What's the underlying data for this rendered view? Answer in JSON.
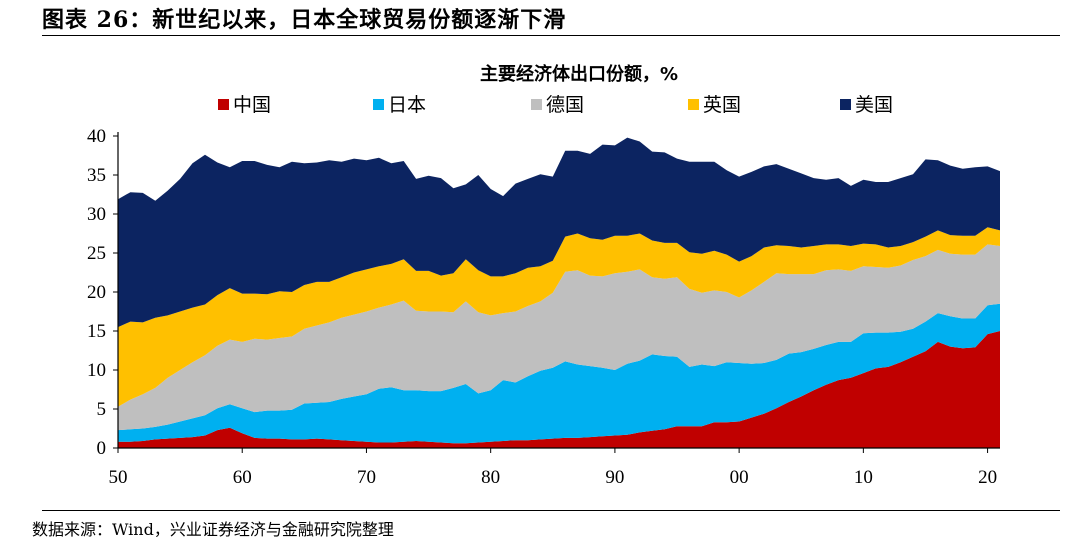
{
  "figure": {
    "title": "图表 26：新世纪以来，日本全球贸易份额逐渐下滑",
    "source": "数据来源：Wind，兴业证券经济与金融研究院整理"
  },
  "chart_data": {
    "type": "area",
    "stacked": true,
    "title": "主要经济体出口份额，%",
    "xlabel": "",
    "ylabel": "",
    "ylim": [
      0,
      40
    ],
    "yticks": [
      0,
      5,
      10,
      15,
      20,
      25,
      30,
      35,
      40
    ],
    "x": [
      1950,
      1951,
      1952,
      1953,
      1954,
      1955,
      1956,
      1957,
      1958,
      1959,
      1960,
      1961,
      1962,
      1963,
      1964,
      1965,
      1966,
      1967,
      1968,
      1969,
      1970,
      1971,
      1972,
      1973,
      1974,
      1975,
      1976,
      1977,
      1978,
      1979,
      1980,
      1981,
      1982,
      1983,
      1984,
      1985,
      1986,
      1987,
      1988,
      1989,
      1990,
      1991,
      1992,
      1993,
      1994,
      1995,
      1996,
      1997,
      1998,
      1999,
      2000,
      2001,
      2002,
      2003,
      2004,
      2005,
      2006,
      2007,
      2008,
      2009,
      2010,
      2011,
      2012,
      2013,
      2014,
      2015,
      2016,
      2017,
      2018,
      2019,
      2020,
      2021
    ],
    "xtick_values": [
      1950,
      1960,
      1970,
      1980,
      1990,
      2000,
      2010,
      2020
    ],
    "xtick_labels": [
      "50",
      "60",
      "70",
      "80",
      "90",
      "00",
      "10",
      "20"
    ],
    "legend_position": "top",
    "grid": false,
    "series": [
      {
        "name": "中国",
        "color": "#c00000",
        "values": [
          0.8,
          0.8,
          0.9,
          1.1,
          1.2,
          1.3,
          1.4,
          1.6,
          2.3,
          2.6,
          1.9,
          1.3,
          1.2,
          1.2,
          1.1,
          1.1,
          1.2,
          1.1,
          1.0,
          0.9,
          0.8,
          0.7,
          0.7,
          0.8,
          0.9,
          0.8,
          0.7,
          0.6,
          0.6,
          0.7,
          0.8,
          0.9,
          1.0,
          1.0,
          1.1,
          1.2,
          1.3,
          1.3,
          1.4,
          1.5,
          1.6,
          1.7,
          2.0,
          2.2,
          2.4,
          2.8,
          2.8,
          2.8,
          3.3,
          3.3,
          3.4,
          3.9,
          4.4,
          5.1,
          5.9,
          6.6,
          7.4,
          8.1,
          8.7,
          9.0,
          9.6,
          10.2,
          10.4,
          11.0,
          11.7,
          12.4,
          13.6,
          13.0,
          12.8,
          12.9,
          14.6,
          15.0
        ]
      },
      {
        "name": "日本",
        "color": "#00b0f0",
        "values": [
          1.5,
          1.6,
          1.6,
          1.6,
          1.8,
          2.1,
          2.4,
          2.6,
          2.8,
          3.0,
          3.2,
          3.3,
          3.6,
          3.6,
          3.8,
          4.6,
          4.6,
          4.8,
          5.3,
          5.7,
          6.1,
          6.9,
          7.1,
          6.6,
          6.5,
          6.5,
          6.6,
          7.1,
          7.6,
          6.3,
          6.6,
          7.8,
          7.4,
          8.2,
          8.8,
          9.1,
          9.8,
          9.4,
          9.1,
          8.8,
          8.4,
          9.1,
          9.2,
          9.8,
          9.4,
          8.9,
          7.6,
          7.9,
          7.2,
          7.7,
          7.5,
          6.9,
          6.5,
          6.2,
          6.2,
          5.7,
          5.3,
          5.1,
          4.9,
          4.6,
          5.1,
          4.6,
          4.4,
          3.9,
          3.6,
          3.8,
          3.7,
          3.9,
          3.8,
          3.7,
          3.7,
          3.5
        ]
      },
      {
        "name": "德国",
        "color": "#bfbfbf",
        "values": [
          3.0,
          3.8,
          4.4,
          5.0,
          6.0,
          6.6,
          7.2,
          7.7,
          8.0,
          8.3,
          8.5,
          9.4,
          9.1,
          9.3,
          9.4,
          9.6,
          9.9,
          10.2,
          10.4,
          10.5,
          10.6,
          10.4,
          10.6,
          11.5,
          10.2,
          10.2,
          10.2,
          9.7,
          10.6,
          10.4,
          9.6,
          8.6,
          9.1,
          9.0,
          8.9,
          9.6,
          11.5,
          12.1,
          11.6,
          11.7,
          12.4,
          11.8,
          11.7,
          9.9,
          9.9,
          10.2,
          10.0,
          9.2,
          9.7,
          9.0,
          8.4,
          9.4,
          10.4,
          11.1,
          10.2,
          10.0,
          9.6,
          9.6,
          9.3,
          9.1,
          8.6,
          8.4,
          8.3,
          8.5,
          8.8,
          8.4,
          8.1,
          8.0,
          8.2,
          8.2,
          7.8,
          7.4
        ]
      },
      {
        "name": "英国",
        "color": "#ffc000",
        "values": [
          10.2,
          10.0,
          9.2,
          9.0,
          8.0,
          7.5,
          7.0,
          6.5,
          6.5,
          6.6,
          6.2,
          5.8,
          5.8,
          6.0,
          5.7,
          5.6,
          5.6,
          5.2,
          5.2,
          5.4,
          5.4,
          5.3,
          5.2,
          5.3,
          5.1,
          5.2,
          4.6,
          5.0,
          5.4,
          5.4,
          5.0,
          4.7,
          4.9,
          4.9,
          4.5,
          4.1,
          4.5,
          4.7,
          4.8,
          4.7,
          4.8,
          4.6,
          4.6,
          4.7,
          4.6,
          4.4,
          4.7,
          5.0,
          5.1,
          4.8,
          4.6,
          4.4,
          4.4,
          3.6,
          3.6,
          3.4,
          3.6,
          3.3,
          3.2,
          3.2,
          2.9,
          2.9,
          2.6,
          2.5,
          2.3,
          2.5,
          2.5,
          2.4,
          2.4,
          2.4,
          2.2,
          2.0
        ]
      },
      {
        "name": "美国",
        "color": "#0c2461",
        "values": [
          16.4,
          16.6,
          16.6,
          15.0,
          16.0,
          17.0,
          18.5,
          19.2,
          17.0,
          15.5,
          17.0,
          17.0,
          16.6,
          15.9,
          16.7,
          15.6,
          15.3,
          15.6,
          14.8,
          14.6,
          14.0,
          13.9,
          12.9,
          12.6,
          11.8,
          12.2,
          12.5,
          10.9,
          9.6,
          12.2,
          11.2,
          10.3,
          11.5,
          11.4,
          11.8,
          10.8,
          11.0,
          10.6,
          10.8,
          12.2,
          11.6,
          12.6,
          11.8,
          11.4,
          11.6,
          10.8,
          11.6,
          11.8,
          11.4,
          10.8,
          10.9,
          10.8,
          10.4,
          10.4,
          9.9,
          9.5,
          8.7,
          8.3,
          8.5,
          7.7,
          8.2,
          8.0,
          8.4,
          8.7,
          8.7,
          9.9,
          9.0,
          8.9,
          8.6,
          8.8,
          7.8,
          7.6
        ]
      }
    ]
  }
}
